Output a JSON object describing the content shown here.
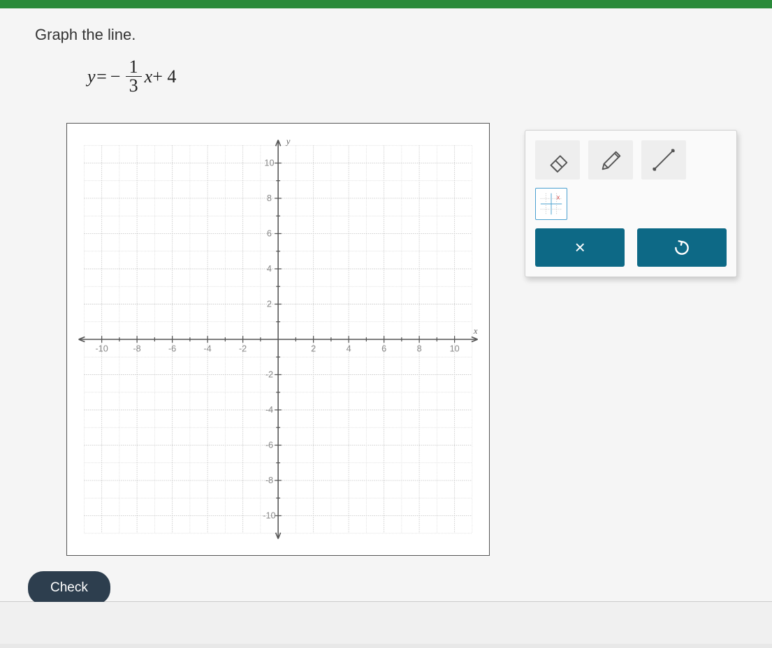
{
  "prompt": "Graph the line.",
  "equation": {
    "lhs_var": "y",
    "equals": " = ",
    "neg": "−",
    "frac_num": "1",
    "frac_den": "3",
    "rhs_var": "x",
    "plus_const": " + 4"
  },
  "graph": {
    "type": "cartesian-grid",
    "x_axis_label": "x",
    "y_axis_label": "y",
    "xlim": [
      -11,
      11
    ],
    "ylim": [
      -11,
      11
    ],
    "major_step": 2,
    "minor_step": 1,
    "tick_labels_x": [
      "-10",
      "-8",
      "-6",
      "-4",
      "-2",
      "2",
      "4",
      "6",
      "8",
      "10"
    ],
    "tick_labels_y": [
      "10",
      "8",
      "6",
      "4",
      "2",
      "-2",
      "-4",
      "-6",
      "-8",
      "-10"
    ],
    "background_color": "#ffffff",
    "grid_minor_color": "#d8d8d8",
    "grid_major_color": "#c8c8c8",
    "axis_color": "#555555",
    "tick_label_color": "#888888"
  },
  "tools": {
    "eraser": "eraser-icon",
    "pencil": "pencil-icon",
    "line": "line-icon",
    "grid": "grid-icon"
  },
  "actions": {
    "clear_symbol": "×",
    "undo_symbol": "↺"
  },
  "check_label": "Check",
  "colors": {
    "header_green": "#2a8a3a",
    "panel_bg": "#fafafa",
    "action_teal": "#0d6986",
    "check_bg": "#2d3e4e"
  }
}
